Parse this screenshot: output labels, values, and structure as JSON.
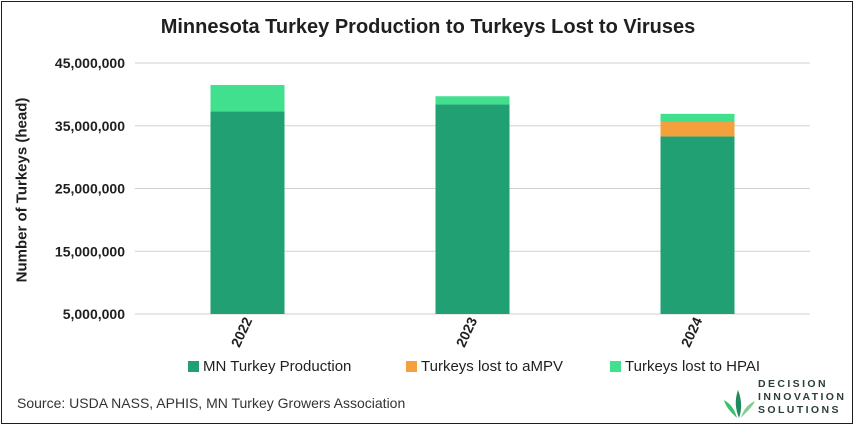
{
  "title": "Minnesota Turkey Production to Turkeys Lost to Viruses",
  "source_text": "Source: USDA NASS, APHIS, MN Turkey Growers Association",
  "logo": {
    "lines": [
      "DECISION",
      "INNOVATION",
      "SOLUTIONS"
    ]
  },
  "chart_data": {
    "type": "bar",
    "stacked": true,
    "categories": [
      "2022",
      "2023",
      "2024"
    ],
    "series": [
      {
        "name": "MN Turkey Production",
        "color": "#21a073",
        "values": [
          37300000,
          38400000,
          33300000
        ]
      },
      {
        "name": "Turkeys lost to aMPV",
        "color": "#f4a03c",
        "values": [
          0,
          0,
          2300000
        ]
      },
      {
        "name": "Turkeys lost to HPAI",
        "color": "#40e08e",
        "values": [
          4200000,
          1300000,
          1300000
        ]
      }
    ],
    "ylabel": "Number of Turkeys (head)",
    "xlabel": "",
    "ylim": [
      5000000,
      45000000
    ],
    "yticks": [
      5000000,
      15000000,
      25000000,
      35000000,
      45000000
    ],
    "ytick_labels": [
      "5,000,000",
      "15,000,000",
      "25,000,000",
      "35,000,000",
      "45,000,000"
    ],
    "grid": true,
    "legend_position": "bottom"
  }
}
